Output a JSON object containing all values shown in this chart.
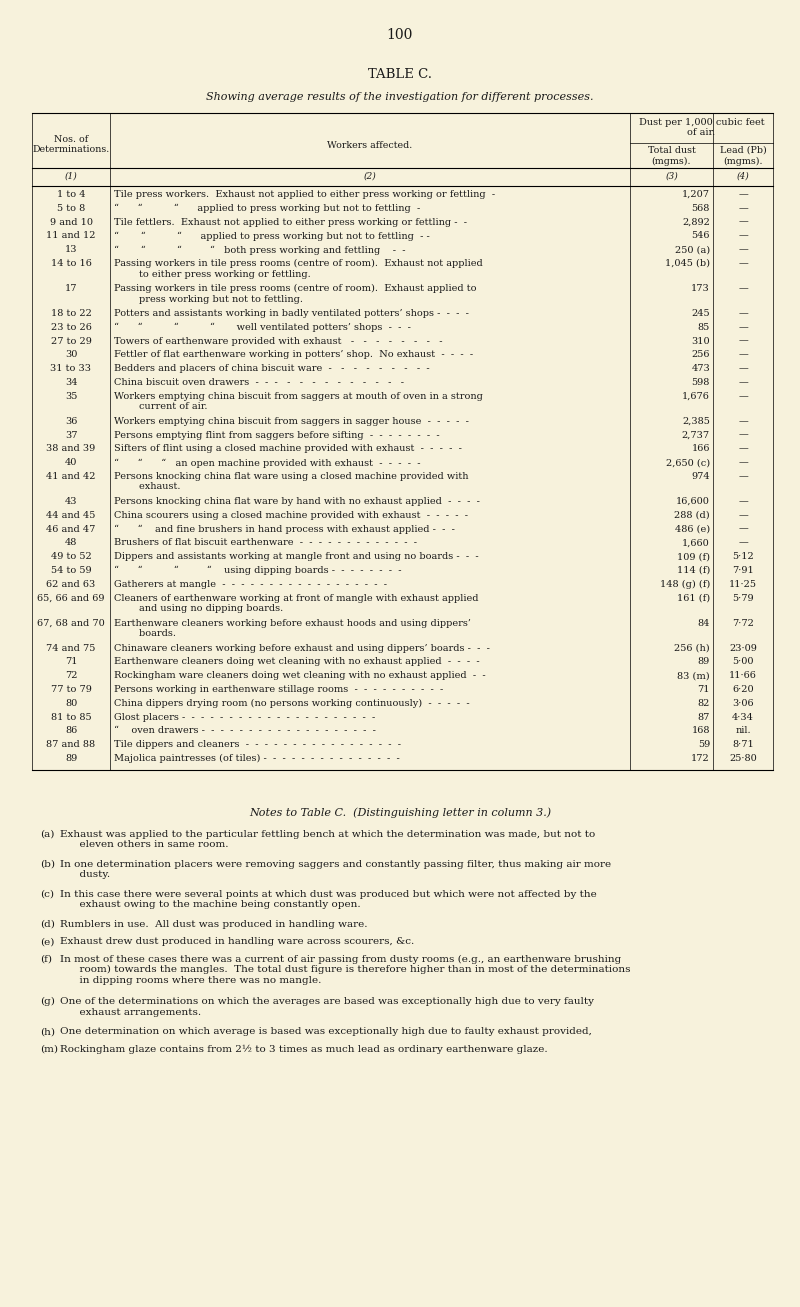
{
  "page_number": "100",
  "title": "TABLE C.",
  "subtitle": "Showing average results of the investigation for different processes.",
  "bg_color": "#f7f2dc",
  "rows": [
    [
      "1 to 4",
      "Tile press workers.  Exhaust not applied to either press working or fettling  -",
      "1,207",
      "—"
    ],
    [
      "5 to 8",
      "“      “          “      applied to press working but not to fettling  -",
      "568",
      "—"
    ],
    [
      "9 and 10",
      "Tile fettlers.  Exhaust not applied to either press working or fettling -  -",
      "2,892",
      "—"
    ],
    [
      "11 and 12",
      "“       “          “      applied to press working but not to fettling  - -",
      "546",
      "—"
    ],
    [
      "13",
      "“       “          “         “   both press working and fettling    -  -",
      "250 (a)",
      "—"
    ],
    [
      "14 to 16",
      "Passing workers in tile press rooms (centre of room).  Exhaust not applied\n        to either press working or fettling.",
      "1,045 (b)",
      "—"
    ],
    [
      "17",
      "Passing workers in tile press rooms (centre of room).  Exhaust applied to\n        press working but not to fettling.",
      "173",
      "—"
    ],
    [
      "18 to 22",
      "Potters and assistants working in badly ventilated potters’ shops -  -  -  -",
      "245",
      "—"
    ],
    [
      "23 to 26",
      "“      “          “          “       well ventilated potters’ shops  -  -  -",
      "85",
      "—"
    ],
    [
      "27 to 29",
      "Towers of earthenware provided with exhaust   -   -   -   -   -   -   -   -",
      "310",
      "—"
    ],
    [
      "30",
      "Fettler of flat earthenware working in potters’ shop.  No exhaust  -  -  -  -",
      "256",
      "—"
    ],
    [
      "31 to 33",
      "Bedders and placers of china biscuit ware  -   -   -   -   -   -   -   -  -",
      "473",
      "—"
    ],
    [
      "34",
      "China biscuit oven drawers  -  -  -   -   -   -   -   -   -   -   -   -   -",
      "598",
      "—"
    ],
    [
      "35",
      "Workers emptying china biscuit from saggers at mouth of oven in a strong\n        current of air.",
      "1,676",
      "—"
    ],
    [
      "36",
      "Workers emptying china biscuit from saggers in sagger house  -  -  -  -  -",
      "2,385",
      "—"
    ],
    [
      "37",
      "Persons emptying flint from saggers before sifting  -  -  -  -  -  -  -  -",
      "2,737",
      "—"
    ],
    [
      "38 and 39",
      "Sifters of flint using a closed machine provided with exhaust  -  -  -  -  -",
      "166",
      "—"
    ],
    [
      "40",
      "“      “      “   an open machine provided with exhaust  -  -  -  -  -",
      "2,650 (c)",
      "—"
    ],
    [
      "41 and 42",
      "Persons knocking china flat ware using a closed machine provided with\n        exhaust.",
      "974",
      "—"
    ],
    [
      "43",
      "Persons knocking china flat ware by hand with no exhaust applied  -  -  -  -",
      "16,600",
      "—"
    ],
    [
      "44 and 45",
      "China scourers using a closed machine provided with exhaust  -  -  -  -  -",
      "288 (d)",
      "—"
    ],
    [
      "46 and 47",
      "“      “    and fine brushers in hand process with exhaust applied -  -  -",
      "486 (e)",
      "—"
    ],
    [
      "48",
      "Brushers of flat biscuit earthenware  -  -  -  -  -  -  -  -  -  -  -  -  -",
      "1,660",
      "—"
    ],
    [
      "49 to 52",
      "Dippers and assistants working at mangle front and using no boards -  -  -",
      "109 (f)",
      "5·12"
    ],
    [
      "54 to 59",
      "“      “          “         “    using dipping boards -  -  -  -  -  -  -  -",
      "114 (f)",
      "7·91"
    ],
    [
      "62 and 63",
      "Gatherers at mangle  -  -  -  -  -  -  -  -  -  -  -  -  -  -  -  -  -  -",
      "148 (g) (f)",
      "11·25"
    ],
    [
      "65, 66 and 69",
      "Cleaners of earthenware working at front of mangle with exhaust applied\n        and using no dipping boards.",
      "161 (f)",
      "5·79"
    ],
    [
      "67, 68 and 70",
      "Earthenware cleaners working before exhaust hoods and using dippers’\n        boards.",
      "84",
      "7·72"
    ],
    [
      "74 and 75",
      "Chinaware cleaners working before exhaust and using dippers’ boards -  -  -",
      "256 (h)",
      "23·09"
    ],
    [
      "71",
      "Earthenware cleaners doing wet cleaning with no exhaust applied  -  -  -  -",
      "89",
      "5·00"
    ],
    [
      "72",
      "Rockingham ware cleaners doing wet cleaning with no exhaust applied  -  -",
      "83 (m)",
      "11·66"
    ],
    [
      "77 to 79",
      "Persons working in earthenware stillage rooms  -  -  -  -  -  -  -  -  -  -",
      "71",
      "6·20"
    ],
    [
      "80",
      "China dippers drying room (no persons working continuously)  -  -  -  -  -",
      "82",
      "3·06"
    ],
    [
      "81 to 85",
      "Glost placers -  -  -  -  -  -  -  -  -  -  -  -  -  -  -  -  -  -  -  -  -",
      "87",
      "4·34"
    ],
    [
      "86",
      "“    oven drawers -  -  -  -  -  -  -  -  -  -  -  -  -  -  -  -  -  -  -",
      "168",
      "nil."
    ],
    [
      "87 and 88",
      "Tile dippers and cleaners  -  -  -  -  -  -  -  -  -  -  -  -  -  -  -  -  -",
      "59",
      "8·71"
    ],
    [
      "89",
      "Majolica paintresses (of tiles) -  -  -  -  -  -  -  -  -  -  -  -  -  -  -",
      "172",
      "25·80"
    ]
  ],
  "notes_title": "Notes to Table C.  (Distinguishing letter in column 3.)",
  "notes": [
    [
      "(a)",
      "Exhaust was applied to the particular fettling bench at which the determination was made, but not to\n      eleven others in same room."
    ],
    [
      "(b)",
      "In one determination placers were removing saggers and constantly passing filter, thus making air more\n      dusty."
    ],
    [
      "(c)",
      "In this case there were several points at which dust was produced but which were not affected by the\n      exhaust owing to the machine being constantly open."
    ],
    [
      "(d)",
      "Rumblers in use.  All dust was produced in handling ware."
    ],
    [
      "(e)",
      "Exhaust drew dust produced in handling ware across scourers, &c."
    ],
    [
      "(f)",
      "In most of these cases there was a current of air passing from dusty rooms (e.g., an earthenware brushing\n      room) towards the mangles.  The total dust figure is therefore higher than in most of the determinations\n      in dipping rooms where there was no mangle."
    ],
    [
      "(g)",
      "One of the determinations on which the averages are based was exceptionally high due to very faulty\n      exhaust arrangements."
    ],
    [
      "(h)",
      "One determination on which average is based was exceptionally high due to faulty exhaust provided,"
    ],
    [
      "(m)",
      "Rockingham glaze contains from 2½ to 3 times as much lead as ordinary earthenware glaze."
    ]
  ]
}
